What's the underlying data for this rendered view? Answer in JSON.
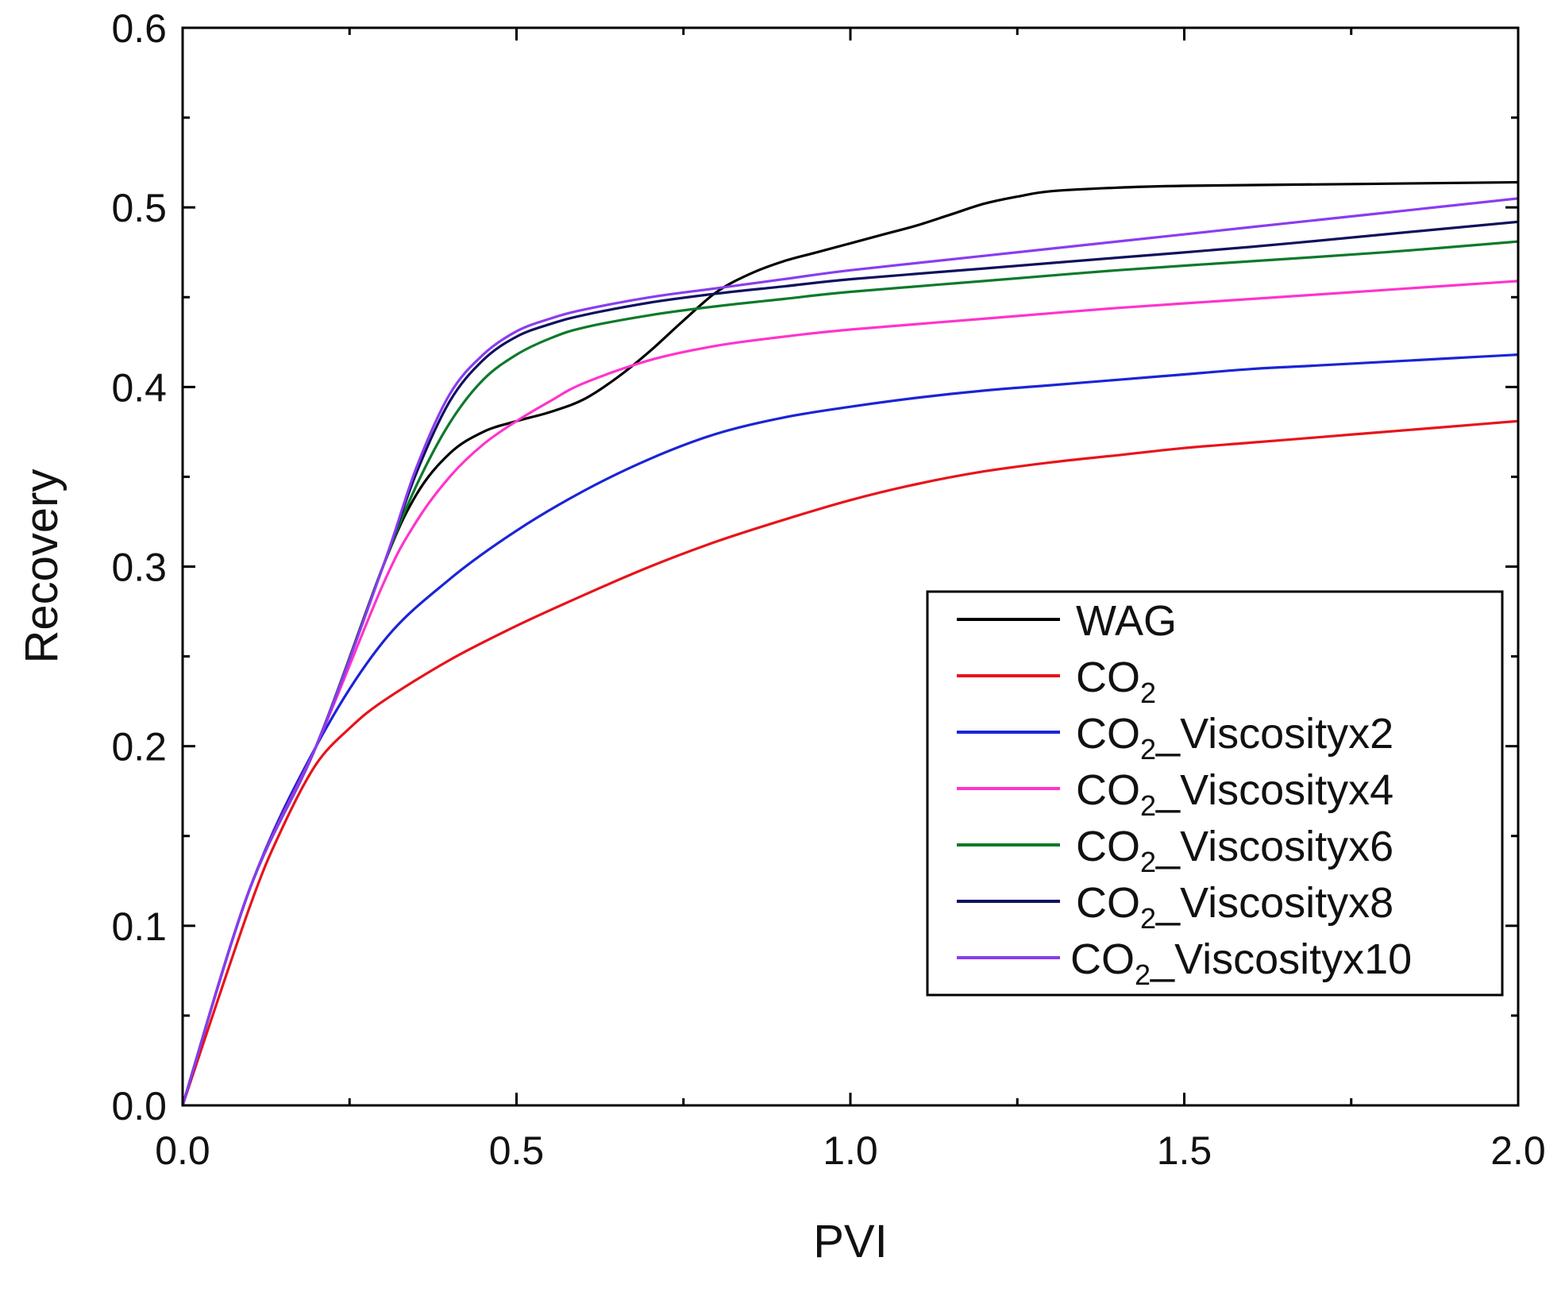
{
  "chart_data": {
    "type": "line",
    "title": "",
    "xlabel": "PVI",
    "ylabel": "Recovery",
    "xlim": [
      0.0,
      2.0
    ],
    "ylim": [
      0.0,
      0.6
    ],
    "grid": false,
    "legend_position": "bottom-right",
    "x_ticks": [
      "0.0",
      "0.5",
      "1.0",
      "1.5",
      "2.0"
    ],
    "y_ticks": [
      "0.0",
      "0.1",
      "0.2",
      "0.3",
      "0.4",
      "0.5",
      "0.6"
    ],
    "series": [
      {
        "name": "WAG",
        "label_main": "WAG",
        "label_sub": "",
        "label_suffix": "",
        "color": "#000000",
        "x": [
          0,
          0.1,
          0.2,
          0.3,
          0.35,
          0.4,
          0.45,
          0.5,
          0.55,
          0.6,
          0.65,
          0.7,
          0.75,
          0.8,
          0.85,
          0.9,
          0.95,
          1.0,
          1.05,
          1.1,
          1.15,
          1.2,
          1.25,
          1.3,
          1.4,
          1.5,
          1.75,
          2.0
        ],
        "y": [
          0,
          0.12,
          0.2,
          0.3,
          0.34,
          0.363,
          0.375,
          0.381,
          0.386,
          0.393,
          0.405,
          0.42,
          0.437,
          0.453,
          0.463,
          0.47,
          0.475,
          0.48,
          0.485,
          0.49,
          0.496,
          0.502,
          0.506,
          0.509,
          0.511,
          0.512,
          0.513,
          0.514
        ]
      },
      {
        "name": "CO2",
        "label_main": "CO",
        "label_sub": "2",
        "label_suffix": "",
        "color": "#e8131a",
        "x": [
          0,
          0.1,
          0.15,
          0.2,
          0.25,
          0.3,
          0.4,
          0.5,
          0.6,
          0.7,
          0.8,
          0.9,
          1.0,
          1.1,
          1.2,
          1.3,
          1.4,
          1.5,
          1.6,
          1.7,
          1.8,
          1.9,
          2.0
        ],
        "y": [
          0,
          0.11,
          0.155,
          0.19,
          0.21,
          0.225,
          0.248,
          0.267,
          0.284,
          0.3,
          0.314,
          0.326,
          0.337,
          0.346,
          0.353,
          0.358,
          0.362,
          0.366,
          0.369,
          0.372,
          0.375,
          0.378,
          0.381
        ]
      },
      {
        "name": "CO2_Viscosityx2",
        "label_main": "CO",
        "label_sub": "2",
        "label_suffix": "_Viscosityx2",
        "color": "#1a24d6",
        "x": [
          0,
          0.1,
          0.2,
          0.3,
          0.4,
          0.5,
          0.6,
          0.7,
          0.8,
          0.9,
          1.0,
          1.1,
          1.2,
          1.3,
          1.4,
          1.5,
          1.6,
          1.7,
          1.8,
          1.9,
          2.0
        ],
        "y": [
          0,
          0.12,
          0.2,
          0.258,
          0.293,
          0.32,
          0.342,
          0.36,
          0.374,
          0.383,
          0.389,
          0.394,
          0.398,
          0.401,
          0.404,
          0.407,
          0.41,
          0.412,
          0.414,
          0.416,
          0.418
        ]
      },
      {
        "name": "CO2_Viscosityx4",
        "label_main": "CO",
        "label_sub": "2",
        "label_suffix": "_Viscosityx4",
        "color": "#ff33cc",
        "x": [
          0,
          0.1,
          0.2,
          0.3,
          0.35,
          0.4,
          0.45,
          0.5,
          0.55,
          0.6,
          0.7,
          0.8,
          0.9,
          1.0,
          1.2,
          1.4,
          1.6,
          1.8,
          2.0
        ],
        "y": [
          0,
          0.12,
          0.2,
          0.29,
          0.325,
          0.35,
          0.368,
          0.381,
          0.392,
          0.402,
          0.415,
          0.423,
          0.428,
          0.432,
          0.438,
          0.444,
          0.449,
          0.454,
          0.459
        ]
      },
      {
        "name": "CO2_Viscosityx6",
        "label_main": "CO",
        "label_sub": "2",
        "label_suffix": "_Viscosityx6",
        "color": "#0b7a2a",
        "x": [
          0,
          0.1,
          0.2,
          0.3,
          0.35,
          0.4,
          0.45,
          0.5,
          0.55,
          0.6,
          0.7,
          0.8,
          0.9,
          1.0,
          1.2,
          1.4,
          1.6,
          1.8,
          2.0
        ],
        "y": [
          0,
          0.12,
          0.2,
          0.3,
          0.345,
          0.38,
          0.404,
          0.418,
          0.427,
          0.433,
          0.44,
          0.445,
          0.449,
          0.453,
          0.459,
          0.465,
          0.47,
          0.475,
          0.481
        ]
      },
      {
        "name": "CO2_Viscosityx8",
        "label_main": "CO",
        "label_sub": "2",
        "label_suffix": "_Viscosityx8",
        "color": "#10105e",
        "x": [
          0,
          0.1,
          0.2,
          0.3,
          0.35,
          0.4,
          0.45,
          0.5,
          0.55,
          0.6,
          0.7,
          0.8,
          0.9,
          1.0,
          1.2,
          1.4,
          1.6,
          1.8,
          2.0
        ],
        "y": [
          0,
          0.12,
          0.2,
          0.3,
          0.352,
          0.392,
          0.415,
          0.428,
          0.435,
          0.44,
          0.447,
          0.452,
          0.456,
          0.46,
          0.466,
          0.472,
          0.478,
          0.485,
          0.492
        ]
      },
      {
        "name": "CO2_Viscosityx10",
        "label_main": "CO",
        "label_sub": "2",
        "label_suffix": "_Viscosityx10",
        "color": "#8a3cf0",
        "x": [
          0,
          0.1,
          0.2,
          0.3,
          0.35,
          0.4,
          0.45,
          0.5,
          0.55,
          0.6,
          0.7,
          0.8,
          0.9,
          1.0,
          1.2,
          1.4,
          1.6,
          1.8,
          2.0
        ],
        "y": [
          0,
          0.12,
          0.2,
          0.3,
          0.355,
          0.396,
          0.418,
          0.431,
          0.438,
          0.443,
          0.45,
          0.455,
          0.46,
          0.465,
          0.473,
          0.481,
          0.489,
          0.497,
          0.505
        ]
      }
    ]
  }
}
